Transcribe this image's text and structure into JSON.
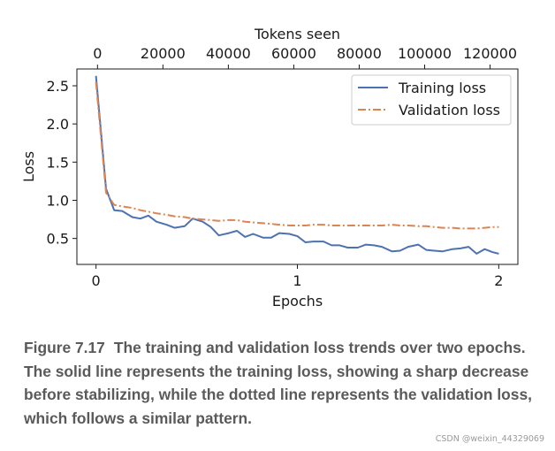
{
  "chart_data": {
    "type": "line",
    "xlabel": "Epochs",
    "x2label": "Tokens seen",
    "ylabel": "Loss",
    "xlim": [
      -0.095,
      2.095
    ],
    "ylim": [
      0.16,
      2.72
    ],
    "x2lim": [
      -6300,
      128500
    ],
    "x_ticks": [
      0,
      1,
      2
    ],
    "x_tick_labels": [
      "0",
      "1",
      "2"
    ],
    "x2_ticks": [
      0,
      20000,
      40000,
      60000,
      80000,
      100000,
      120000
    ],
    "x2_tick_labels": [
      "0",
      "20000",
      "40000",
      "60000",
      "80000",
      "100000",
      "120000"
    ],
    "y_ticks": [
      0.5,
      1.0,
      1.5,
      2.0,
      2.5
    ],
    "y_tick_labels": [
      "0.5",
      "1.0",
      "1.5",
      "2.0",
      "2.5"
    ],
    "grid": false,
    "legend_position": "top-right",
    "series": [
      {
        "name": "Training loss",
        "color": "#4c72b0",
        "style": "solid",
        "x": [
          0,
          0.05,
          0.09,
          0.13,
          0.18,
          0.22,
          0.26,
          0.3,
          0.35,
          0.39,
          0.44,
          0.48,
          0.53,
          0.57,
          0.61,
          0.66,
          0.7,
          0.74,
          0.78,
          0.83,
          0.87,
          0.91,
          0.96,
          1.0,
          1.04,
          1.08,
          1.13,
          1.17,
          1.21,
          1.25,
          1.3,
          1.34,
          1.38,
          1.42,
          1.47,
          1.51,
          1.55,
          1.6,
          1.64,
          1.68,
          1.72,
          1.77,
          1.81,
          1.85,
          1.89,
          1.93,
          1.97,
          2.0
        ],
        "y": [
          2.63,
          1.15,
          0.87,
          0.86,
          0.78,
          0.76,
          0.8,
          0.72,
          0.68,
          0.64,
          0.66,
          0.76,
          0.72,
          0.65,
          0.54,
          0.57,
          0.6,
          0.52,
          0.56,
          0.51,
          0.51,
          0.57,
          0.56,
          0.53,
          0.45,
          0.46,
          0.46,
          0.41,
          0.41,
          0.38,
          0.38,
          0.42,
          0.41,
          0.39,
          0.33,
          0.34,
          0.39,
          0.42,
          0.35,
          0.34,
          0.33,
          0.36,
          0.37,
          0.39,
          0.3,
          0.36,
          0.32,
          0.3
        ]
      },
      {
        "name": "Validation loss",
        "color": "#dd8452",
        "style": "dashdot",
        "x": [
          0,
          0.05,
          0.09,
          0.13,
          0.18,
          0.22,
          0.26,
          0.3,
          0.35,
          0.39,
          0.44,
          0.48,
          0.53,
          0.57,
          0.61,
          0.66,
          0.7,
          0.74,
          0.78,
          0.83,
          0.87,
          0.91,
          0.96,
          1.0,
          1.04,
          1.08,
          1.13,
          1.17,
          1.21,
          1.25,
          1.3,
          1.34,
          1.38,
          1.42,
          1.47,
          1.51,
          1.55,
          1.6,
          1.64,
          1.68,
          1.72,
          1.77,
          1.81,
          1.85,
          1.89,
          1.93,
          1.97,
          2.0
        ],
        "y": [
          2.55,
          1.1,
          0.94,
          0.92,
          0.9,
          0.87,
          0.85,
          0.83,
          0.81,
          0.79,
          0.78,
          0.76,
          0.75,
          0.74,
          0.73,
          0.74,
          0.74,
          0.72,
          0.71,
          0.7,
          0.69,
          0.68,
          0.67,
          0.67,
          0.67,
          0.68,
          0.68,
          0.67,
          0.67,
          0.67,
          0.67,
          0.67,
          0.67,
          0.67,
          0.68,
          0.67,
          0.67,
          0.66,
          0.66,
          0.65,
          0.64,
          0.64,
          0.63,
          0.63,
          0.63,
          0.64,
          0.65,
          0.65
        ]
      }
    ]
  },
  "caption": {
    "label": "Figure 7.17",
    "text": "The training and validation loss trends over two epochs. The solid line represents the training loss, showing a sharp decrease before stabilizing, while the dotted line represents the validation loss, which follows a similar pattern."
  },
  "watermark": "CSDN @weixin_44329069"
}
